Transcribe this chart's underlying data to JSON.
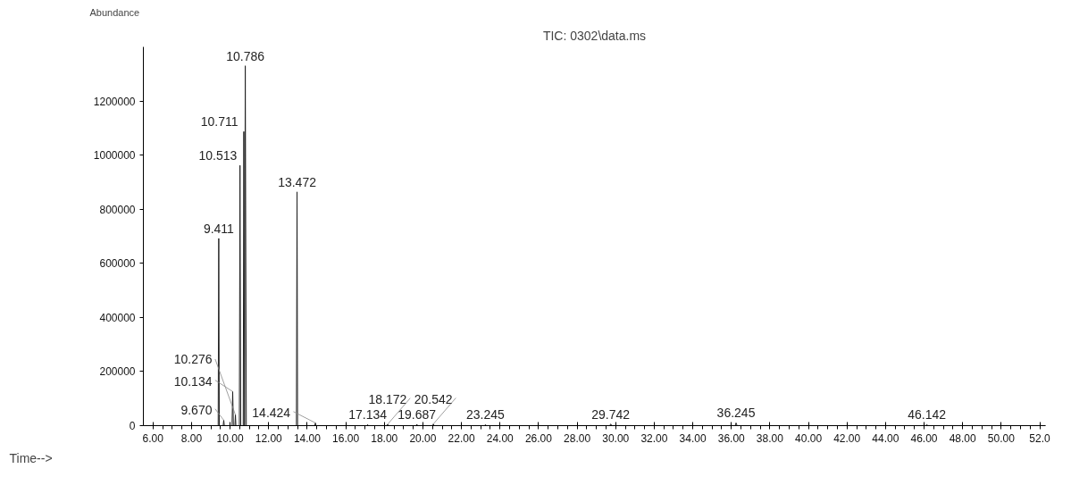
{
  "chart_data": {
    "type": "line",
    "title": "TIC: 0302\\data.ms",
    "xlabel": "Time-->",
    "ylabel": "Abundance",
    "x": [
      5.5,
      9.38,
      9.411,
      9.44,
      9.64,
      9.67,
      9.7,
      10.1,
      10.134,
      10.17,
      10.25,
      10.276,
      10.3,
      10.48,
      10.513,
      10.55,
      10.68,
      10.711,
      10.75,
      10.786,
      10.84,
      11.2,
      13.44,
      13.472,
      13.5,
      14.39,
      14.424,
      14.46,
      17.1,
      17.134,
      17.17,
      18.14,
      18.172,
      18.2,
      19.66,
      19.687,
      19.72,
      20.51,
      20.542,
      20.58,
      23.2,
      23.245,
      23.3,
      29.7,
      29.742,
      29.8,
      36.2,
      36.245,
      36.3,
      46.1,
      46.142,
      46.2,
      52.3
    ],
    "series": [
      {
        "color": "#222222",
        "values": [
          0,
          0,
          692000,
          0,
          0,
          20000,
          0,
          0,
          126000,
          0,
          0,
          40000,
          0,
          0,
          962000,
          0,
          0,
          1087000,
          0,
          1330000,
          0,
          0,
          0,
          864000,
          0,
          0,
          10000,
          0,
          0,
          4000,
          0,
          0,
          5000,
          0,
          0,
          5000,
          0,
          0,
          6000,
          0,
          0,
          4000,
          0,
          0,
          6000,
          0,
          0,
          10000,
          0,
          0,
          4000,
          0,
          0
        ]
      }
    ],
    "xlim": [
      5.5,
      52.3
    ],
    "ylim": [
      0,
      1400000
    ],
    "xticks": [
      {
        "value": 6,
        "label": "6.00"
      },
      {
        "value": 8,
        "label": "8.00"
      },
      {
        "value": 10,
        "label": "10.00"
      },
      {
        "value": 12,
        "label": "12.00"
      },
      {
        "value": 14,
        "label": "14.00"
      },
      {
        "value": 16,
        "label": "16.00"
      },
      {
        "value": 18,
        "label": "18.00"
      },
      {
        "value": 20,
        "label": "20.00"
      },
      {
        "value": 22,
        "label": "22.00"
      },
      {
        "value": 24,
        "label": "24.00"
      },
      {
        "value": 26,
        "label": "26.00"
      },
      {
        "value": 28,
        "label": "28.00"
      },
      {
        "value": 30,
        "label": "30.00"
      },
      {
        "value": 32,
        "label": "32.00"
      },
      {
        "value": 34,
        "label": "34.00"
      },
      {
        "value": 36,
        "label": "36.00"
      },
      {
        "value": 38,
        "label": "38.00"
      },
      {
        "value": 40,
        "label": "40.00"
      },
      {
        "value": 42,
        "label": "42.00"
      },
      {
        "value": 44,
        "label": "44.00"
      },
      {
        "value": 46,
        "label": "46.00"
      },
      {
        "value": 48,
        "label": "48.00"
      },
      {
        "value": 50,
        "label": "50.00"
      },
      {
        "value": 52,
        "label": "52.0"
      }
    ],
    "yticks": [
      0,
      200000,
      400000,
      600000,
      800000,
      1000000,
      1200000
    ],
    "grid": false,
    "marker": "none",
    "line_style": "solid",
    "annotations": [
      {
        "text": "9.411",
        "x": 9.411,
        "y": 692000
      },
      {
        "text": "9.670",
        "x": 9.67,
        "y": 20000
      },
      {
        "text": "10.134",
        "x": 10.134,
        "y": 126000
      },
      {
        "text": "10.276",
        "x": 10.276,
        "y": 40000
      },
      {
        "text": "10.513",
        "x": 10.513,
        "y": 962000
      },
      {
        "text": "10.711",
        "x": 10.711,
        "y": 1087000
      },
      {
        "text": "10.786",
        "x": 10.786,
        "y": 1330000
      },
      {
        "text": "13.472",
        "x": 13.472,
        "y": 864000
      },
      {
        "text": "14.424",
        "x": 14.424,
        "y": 10000
      },
      {
        "text": "17.134",
        "x": 17.134,
        "y": 4000
      },
      {
        "text": "18.172",
        "x": 18.172,
        "y": 5000
      },
      {
        "text": "19.687",
        "x": 19.687,
        "y": 5000
      },
      {
        "text": "20.542",
        "x": 20.542,
        "y": 6000
      },
      {
        "text": "23.245",
        "x": 23.245,
        "y": 4000
      },
      {
        "text": "29.742",
        "x": 29.742,
        "y": 6000
      },
      {
        "text": "36.245",
        "x": 36.245,
        "y": 10000
      },
      {
        "text": "46.142",
        "x": 46.142,
        "y": 4000
      }
    ]
  }
}
